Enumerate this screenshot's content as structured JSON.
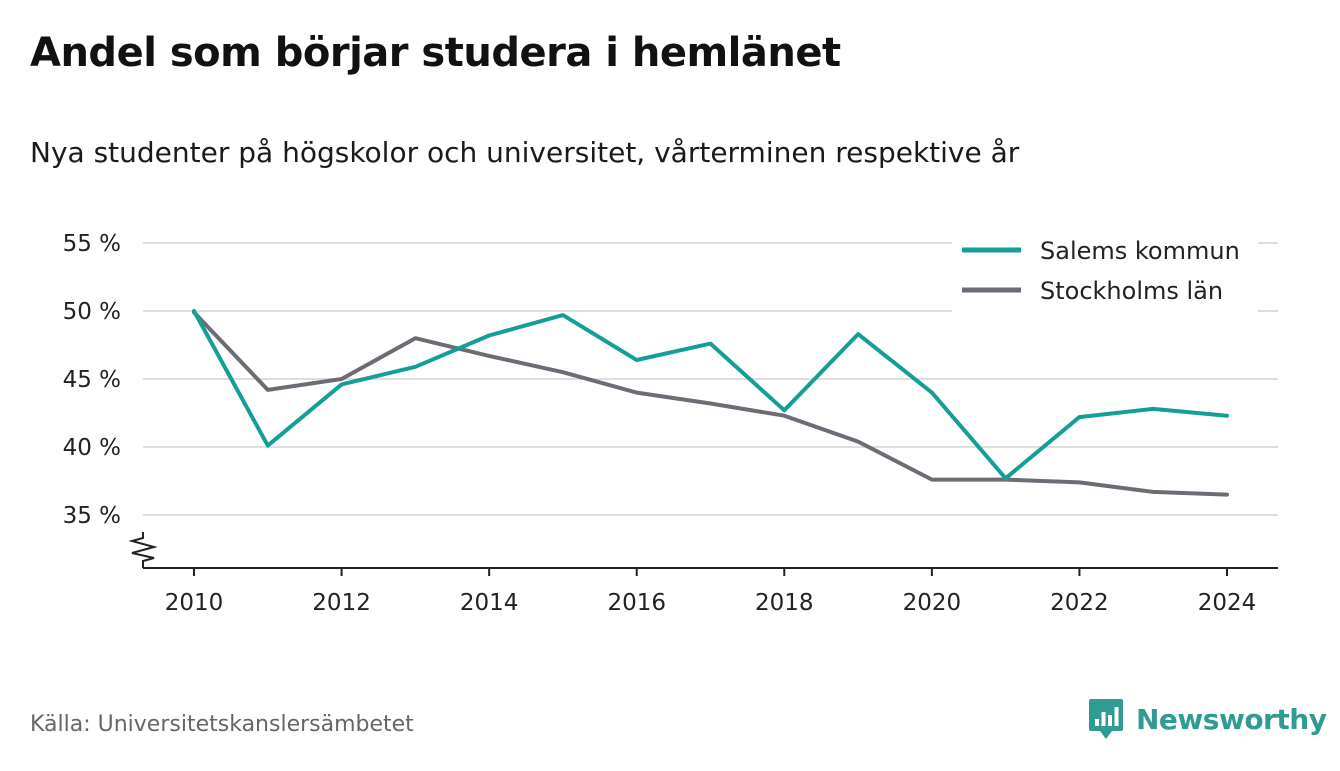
{
  "header": {
    "title": "Andel som börjar studera i hemlänet",
    "subtitle": "Nya studenter på högskolor och universitet, vårterminen respektive år"
  },
  "footer": {
    "source": "Källa: Universitetskanslersämbetet",
    "brand_name": "Newsworthy",
    "brand_icon": "newsworthy-logo-icon"
  },
  "colors": {
    "salem": "#139e96",
    "stockholm": "#6e6b74",
    "grid": "#dedede",
    "axis": "#222222",
    "brand": "#2f9b92"
  },
  "chart_data": {
    "type": "line",
    "title": "Andel som börjar studera i hemlänet",
    "subtitle": "Nya studenter på högskolor och universitet, vårterminen respektive år",
    "x": [
      2010,
      2011,
      2012,
      2013,
      2014,
      2015,
      2016,
      2017,
      2018,
      2019,
      2020,
      2021,
      2022,
      2023,
      2024
    ],
    "x_ticks": [
      2010,
      2012,
      2014,
      2016,
      2018,
      2020,
      2022,
      2024
    ],
    "y_ticks": [
      35,
      40,
      45,
      50,
      55
    ],
    "y_tick_labels": [
      "35 %",
      "40 %",
      "45 %",
      "50 %",
      "55 %"
    ],
    "ylim": [
      35,
      55
    ],
    "y_axis_break": true,
    "grid": true,
    "legend_position": "top-right",
    "xlabel": "",
    "ylabel": "",
    "series": [
      {
        "name": "Salems kommun",
        "color": "#139e96",
        "values": [
          50.0,
          40.1,
          44.6,
          45.9,
          48.2,
          49.7,
          46.4,
          47.6,
          42.7,
          48.3,
          44.0,
          37.7,
          42.2,
          42.8,
          42.3
        ]
      },
      {
        "name": "Stockholms län",
        "color": "#6e6b74",
        "values": [
          49.9,
          44.2,
          45.0,
          48.0,
          46.7,
          45.5,
          44.0,
          43.2,
          42.3,
          40.4,
          37.6,
          37.6,
          37.4,
          36.7,
          36.5
        ]
      }
    ]
  }
}
